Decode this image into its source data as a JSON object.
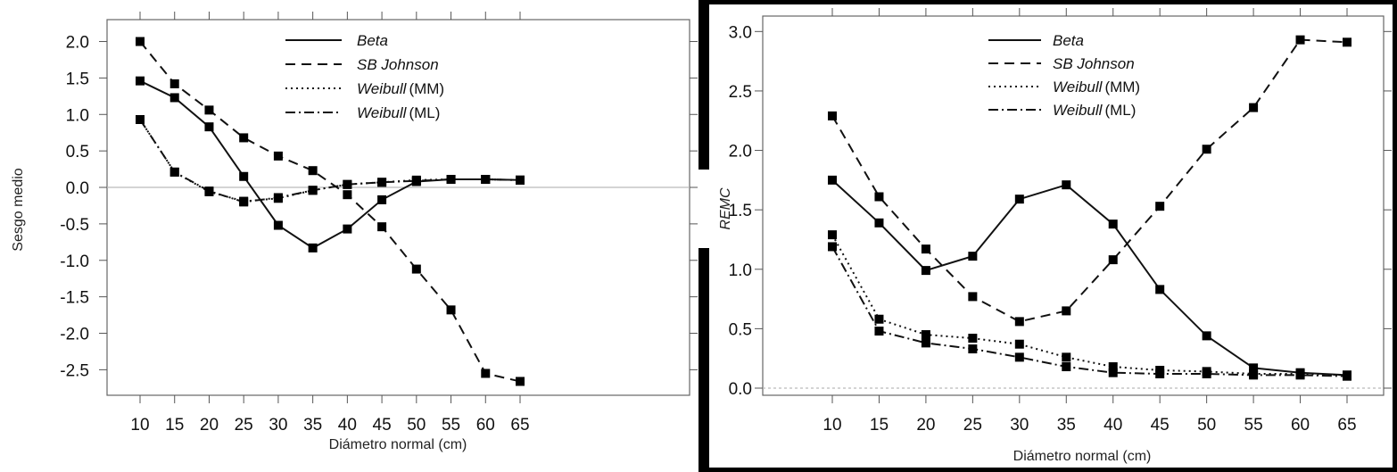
{
  "chart_data": [
    {
      "type": "line",
      "title": "",
      "xlabel": "Diámetro normal (cm)",
      "ylabel": "Sesgo medio",
      "x": [
        10,
        15,
        20,
        25,
        30,
        35,
        40,
        45,
        50,
        55,
        60,
        65
      ],
      "xticks": [
        "10",
        "15",
        "20",
        "25",
        "30",
        "35",
        "40",
        "45",
        "50",
        "55",
        "60",
        "65"
      ],
      "yticks": [
        "2.0",
        "1.5",
        "1.0",
        "0.5",
        "0.0",
        "-0.5",
        "-1.0",
        "-1.5",
        "-2.0",
        "-2.5"
      ],
      "ytick_values": [
        2.0,
        1.5,
        1.0,
        0.5,
        0.0,
        -0.5,
        -1.0,
        -1.5,
        -2.0,
        -2.5
      ],
      "ylim": [
        -2.85,
        2.3
      ],
      "reference_line": 0,
      "legend_position": "top-center",
      "series": [
        {
          "name": "Beta",
          "name_suffix": "",
          "style": "solid",
          "values": [
            1.46,
            1.23,
            0.83,
            0.15,
            -0.52,
            -0.83,
            -0.57,
            -0.17,
            0.08,
            0.11,
            0.11,
            0.1
          ]
        },
        {
          "name": "SB Johnson",
          "name_suffix": "",
          "style": "dashed",
          "values": [
            2.0,
            1.42,
            1.06,
            0.68,
            0.43,
            0.23,
            -0.1,
            -0.54,
            -1.12,
            -1.68,
            -2.55,
            -2.66
          ]
        },
        {
          "name": "Weibull",
          "name_suffix": "(MM)",
          "style": "dotted",
          "values": [
            0.93,
            0.21,
            -0.06,
            -0.19,
            -0.15,
            -0.04,
            0.04,
            0.07,
            0.1,
            0.11,
            0.11,
            0.1
          ]
        },
        {
          "name": "Weibull",
          "name_suffix": "(ML)",
          "style": "dashdot",
          "values": [
            0.93,
            0.21,
            -0.05,
            -0.2,
            -0.14,
            -0.04,
            0.04,
            0.07,
            0.09,
            0.11,
            0.11,
            0.1
          ]
        }
      ]
    },
    {
      "type": "line",
      "title": "",
      "xlabel": "Diámetro normal (cm)",
      "ylabel": "REMC",
      "x": [
        10,
        15,
        20,
        25,
        30,
        35,
        40,
        45,
        50,
        55,
        60,
        65
      ],
      "xticks": [
        "10",
        "15",
        "20",
        "25",
        "30",
        "35",
        "40",
        "45",
        "50",
        "55",
        "60",
        "65"
      ],
      "yticks": [
        "3.0",
        "2.5",
        "2.0",
        "1.5",
        "1.0",
        "0.5",
        "0.0"
      ],
      "ytick_values": [
        3.0,
        2.5,
        2.0,
        1.5,
        1.0,
        0.5,
        0.0
      ],
      "ylim": [
        -0.06,
        3.13
      ],
      "reference_line": 0,
      "legend_position": "top-center",
      "series": [
        {
          "name": "Beta",
          "name_suffix": "",
          "style": "solid",
          "values": [
            1.75,
            1.39,
            0.99,
            1.11,
            1.59,
            1.71,
            1.38,
            0.83,
            0.44,
            0.17,
            0.13,
            0.11
          ]
        },
        {
          "name": "SB Johnson",
          "name_suffix": "",
          "style": "dashed",
          "values": [
            2.29,
            1.61,
            1.17,
            0.77,
            0.56,
            0.65,
            1.08,
            1.53,
            2.01,
            2.36,
            2.93,
            2.91
          ]
        },
        {
          "name": "Weibull",
          "name_suffix": "(MM)",
          "style": "dotted",
          "values": [
            1.29,
            0.58,
            0.45,
            0.42,
            0.37,
            0.26,
            0.18,
            0.15,
            0.14,
            0.12,
            0.12,
            0.11
          ]
        },
        {
          "name": "Weibull",
          "name_suffix": "(ML)",
          "style": "dashdot",
          "values": [
            1.19,
            0.48,
            0.38,
            0.33,
            0.26,
            0.18,
            0.13,
            0.12,
            0.12,
            0.11,
            0.11,
            0.1
          ]
        }
      ]
    }
  ]
}
